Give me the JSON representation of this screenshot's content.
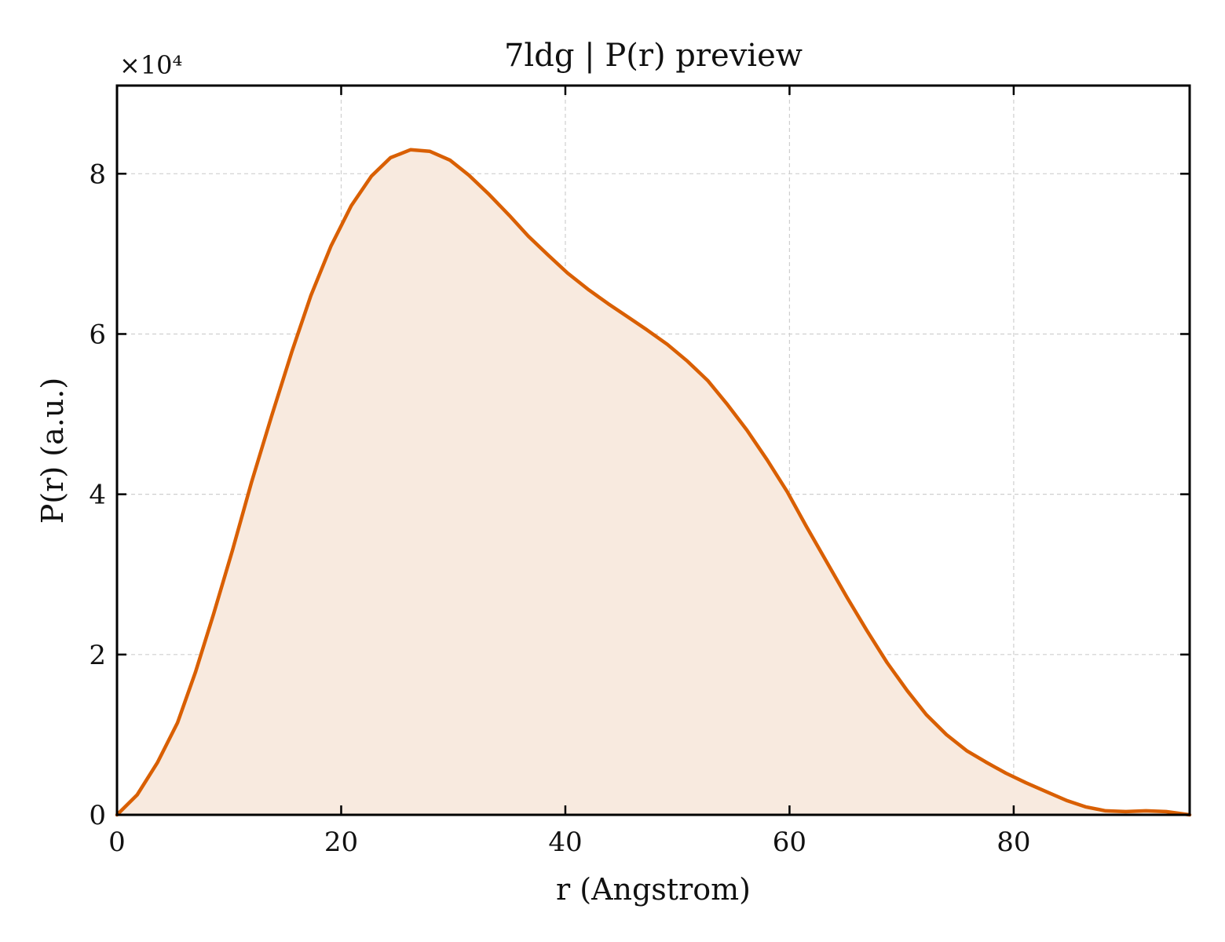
{
  "chart_data": {
    "type": "area",
    "title": "7ldg | P(r) preview",
    "xlabel": "r (Angstrom)",
    "ylabel": "P(r) (a.u.)",
    "y_multiplier": "×10⁴",
    "xlim": [
      0,
      95.7
    ],
    "ylim": [
      0,
      9.1
    ],
    "xticks": [
      0,
      20,
      40,
      60,
      80
    ],
    "yticks": [
      0,
      2,
      4,
      6,
      8
    ],
    "grid": true,
    "legend": "none",
    "colors": {
      "line": "#d95f02",
      "fill": "#f8eadf",
      "frame": "#000000",
      "grid": "#cfcfcf"
    },
    "series": [
      {
        "x": [
          0,
          1.8,
          3.6,
          5.4,
          7.0,
          8.6,
          10.3,
          12.0,
          13.8,
          15.6,
          17.3,
          19.1,
          20.9,
          22.7,
          24.4,
          26.2,
          27.9,
          29.7,
          31.4,
          33.2,
          35.0,
          36.7,
          38.5,
          40.2,
          42.0,
          43.8,
          45.6,
          47.3,
          49.1,
          50.9,
          52.7,
          54.4,
          56.2,
          58.0,
          59.8,
          61.5,
          63.3,
          65.1,
          66.9,
          68.7,
          70.5,
          72.2,
          74.0,
          75.8,
          77.5,
          79.3,
          81.1,
          82.9,
          84.7,
          86.4,
          88.2,
          90.0,
          91.8,
          93.6,
          95.7
        ],
        "y": [
          0,
          0.25,
          0.65,
          1.15,
          1.78,
          2.5,
          3.3,
          4.15,
          4.98,
          5.78,
          6.48,
          7.1,
          7.6,
          7.97,
          8.2,
          8.3,
          8.28,
          8.17,
          7.98,
          7.74,
          7.48,
          7.22,
          6.98,
          6.76,
          6.56,
          6.38,
          6.21,
          6.05,
          5.87,
          5.66,
          5.42,
          5.13,
          4.8,
          4.43,
          4.03,
          3.6,
          3.16,
          2.72,
          2.3,
          1.9,
          1.55,
          1.25,
          1.0,
          0.8,
          0.66,
          0.52,
          0.4,
          0.29,
          0.18,
          0.1,
          0.05,
          0.04,
          0.05,
          0.04,
          0.0
        ]
      }
    ]
  }
}
